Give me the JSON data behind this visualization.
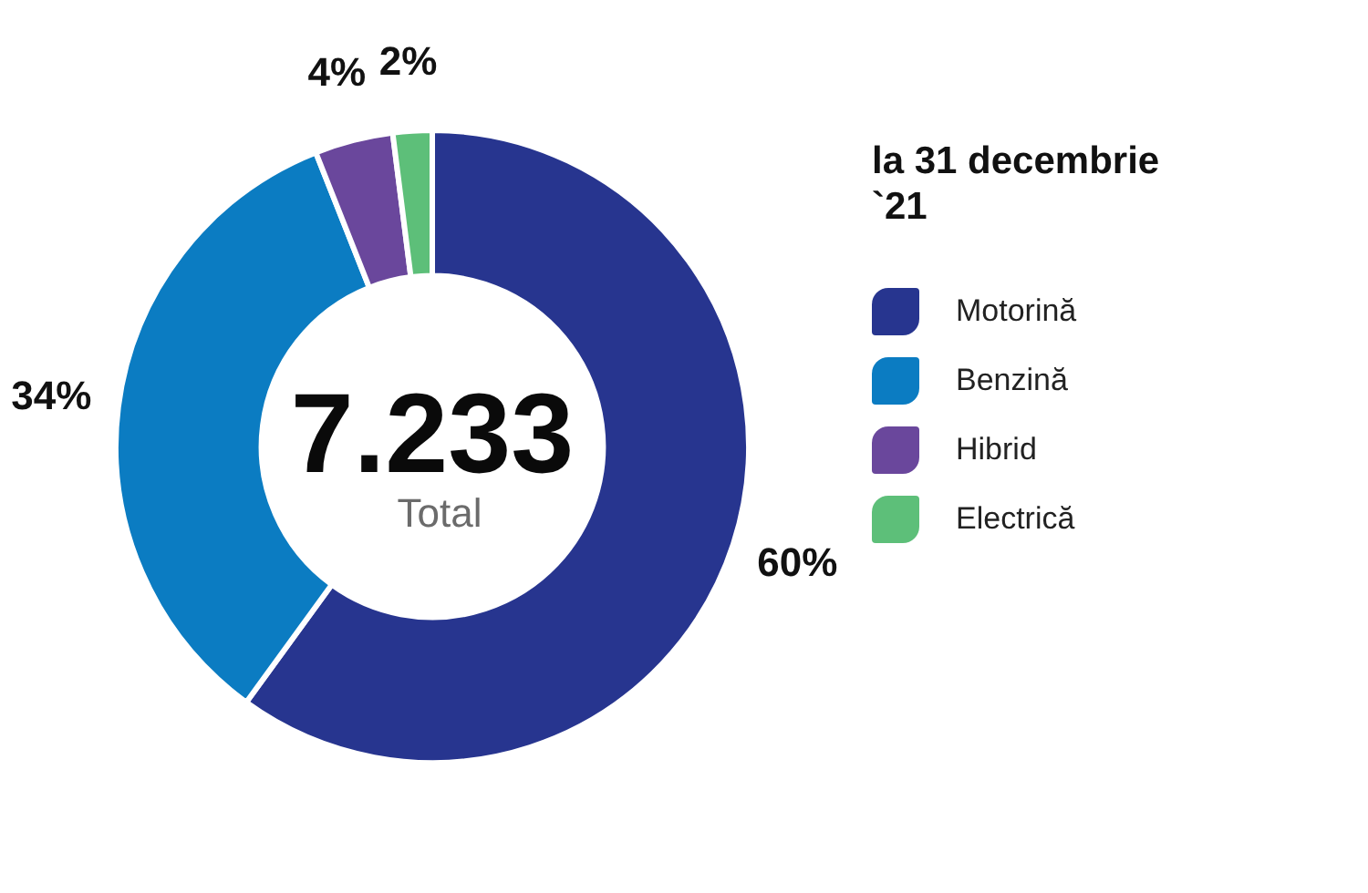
{
  "chart_data": {
    "type": "donut",
    "categories": [
      "Motorină",
      "Benzină",
      "Hibrid",
      "Electrică"
    ],
    "values": [
      60,
      34,
      4,
      2
    ],
    "colors": [
      "#27358f",
      "#0b7cc2",
      "#6a479c",
      "#5dbf79"
    ],
    "value_labels": [
      "60%",
      "34%",
      "4%",
      "2%"
    ],
    "legend": "right",
    "legend_title": "la 31 decembrie `21",
    "annotations": [
      "7.233",
      "Total"
    ]
  }
}
